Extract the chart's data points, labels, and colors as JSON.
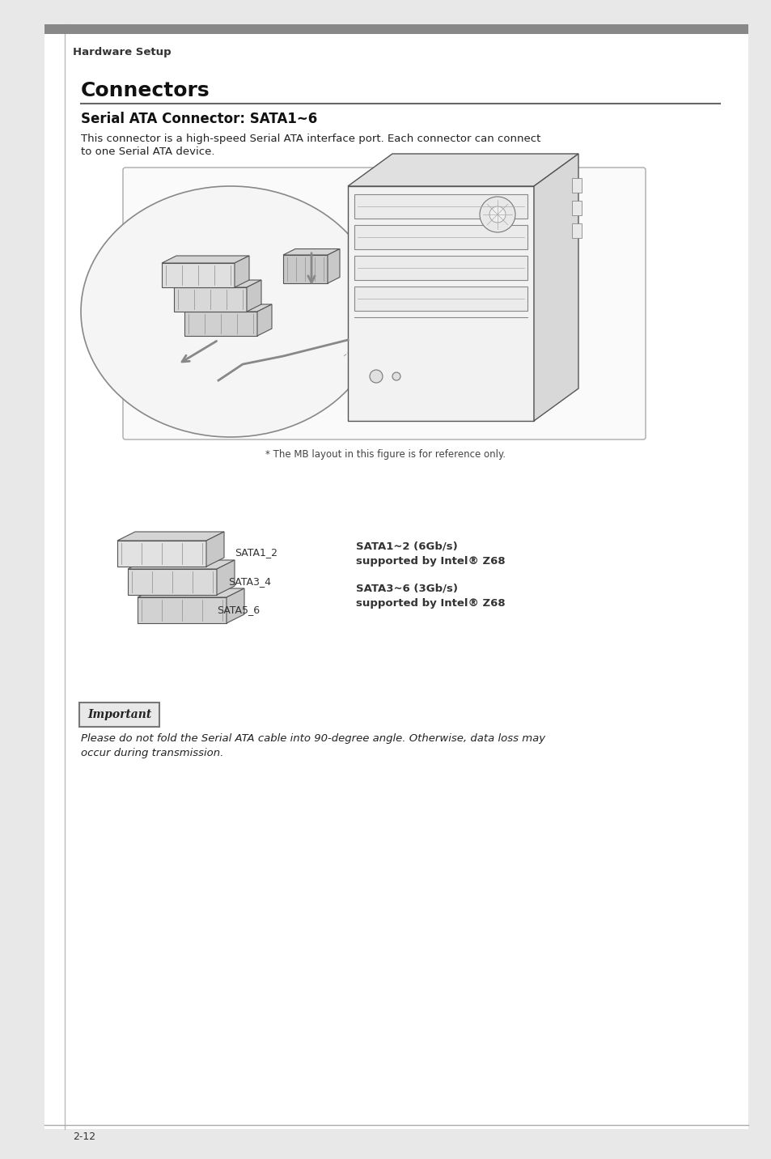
{
  "page_bg": "#e8e8e8",
  "inner_bg": "#ffffff",
  "header_text": "Hardware Setup",
  "header_color": "#333333",
  "header_font_size": 9.5,
  "top_bar_color": "#888888",
  "section_title": "Connectors",
  "section_title_font_size": 18,
  "section_title_color": "#111111",
  "section_underline_color": "#666666",
  "subsection_title": "Serial ATA Connector: SATA1~6",
  "subsection_title_font_size": 12,
  "subsection_title_color": "#111111",
  "body_text_line1": "This connector is a high-speed Serial ATA interface port. Each connector can connect",
  "body_text_line2": "to one Serial ATA device.",
  "body_font_size": 9.5,
  "body_color": "#222222",
  "figure_caption": "* The MB layout in this figure is for reference only.",
  "figure_caption_font_size": 8.5,
  "figure_caption_color": "#444444",
  "sata_label1": "SATA1_2",
  "sata_label2": "SATA3_4",
  "sata_label3": "SATA5_6",
  "connector_label_font_size": 9,
  "connector_label_color": "#333333",
  "spec1_line1": "SATA1~2 (6Gb/s)",
  "spec1_line2": "supported by Intel® Z68",
  "spec2_line1": "SATA3~6 (3Gb/s)",
  "spec2_line2": "supported by Intel® Z68",
  "spec_font_size": 9.5,
  "spec_color": "#333333",
  "important_label": "Important",
  "important_font_size": 10,
  "important_text_line1": "Please do not fold the Serial ATA cable into 90-degree angle. Otherwise, data loss may",
  "important_text_line2": "occur during transmission.",
  "important_text_font_size": 9.5,
  "important_text_color": "#222222",
  "footer_text": "2-12",
  "footer_font_size": 9,
  "footer_color": "#333333"
}
